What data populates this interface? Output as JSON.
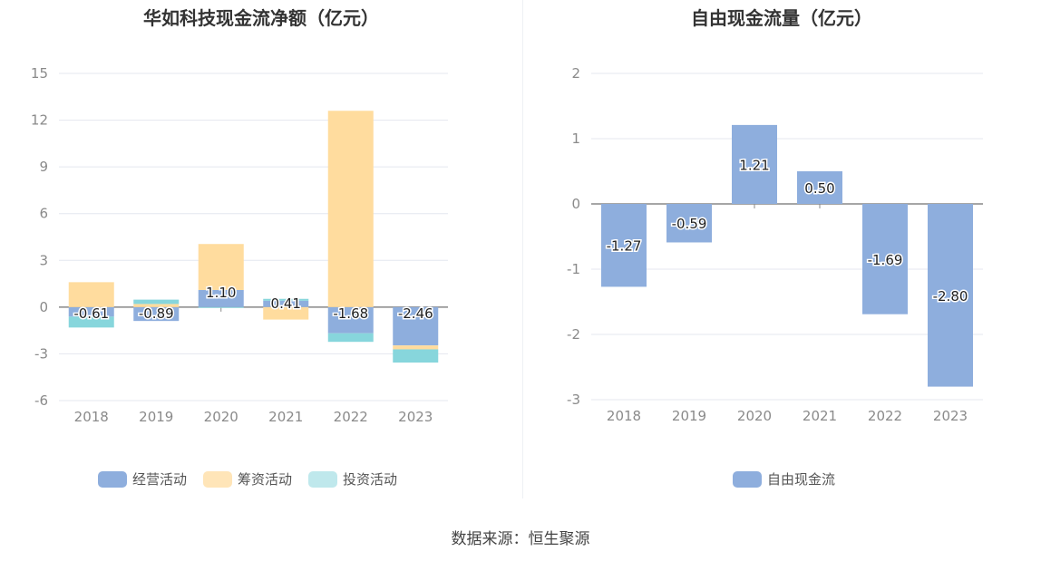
{
  "source": "数据来源：恒生聚源",
  "chart_data": [
    {
      "type": "bar",
      "stacked": true,
      "title": "华如科技现金流净额（亿元）",
      "categories": [
        "2018",
        "2019",
        "2020",
        "2021",
        "2022",
        "2023"
      ],
      "yticks": [
        "15",
        "12",
        "9",
        "6",
        "3",
        "0",
        "-3",
        "-6"
      ],
      "ylim": [
        -6,
        15
      ],
      "series": [
        {
          "name": "经营活动",
          "values": [
            -0.61,
            -0.89,
            1.1,
            0.41,
            -1.68,
            -2.46
          ]
        },
        {
          "name": "筹资活动",
          "values": [
            1.6,
            0.2,
            2.95,
            -0.8,
            12.6,
            -0.25
          ]
        },
        {
          "name": "投资活动",
          "values": [
            -0.7,
            0.28,
            -0.05,
            0.12,
            -0.55,
            -0.85
          ]
        }
      ],
      "data_labels": [
        "-0.61",
        "-0.89",
        "1.10",
        "0.41",
        "-1.68",
        "-2.46"
      ],
      "colors": [
        "#8eaedd",
        "#ffdc9e",
        "#87d6dc"
      ],
      "legend_colors": [
        "#8eaedd",
        "#ffe5b8",
        "#bfe8ec"
      ],
      "legend": "bottom"
    },
    {
      "type": "bar",
      "title": "自由现金流量（亿元）",
      "categories": [
        "2018",
        "2019",
        "2020",
        "2021",
        "2022",
        "2023"
      ],
      "yticks": [
        "2",
        "1",
        "0",
        "-1",
        "-2",
        "-3"
      ],
      "ylim": [
        -3,
        2
      ],
      "series": [
        {
          "name": "自由现金流",
          "values": [
            -1.27,
            -0.59,
            1.21,
            0.5,
            -1.69,
            -2.8
          ]
        }
      ],
      "data_labels": [
        "-1.27",
        "-0.59",
        "1.21",
        "0.50",
        "-1.69",
        "-2.80"
      ],
      "colors": [
        "#8eaedd"
      ],
      "legend_colors": [
        "#8eaedd"
      ],
      "legend": "bottom"
    }
  ]
}
